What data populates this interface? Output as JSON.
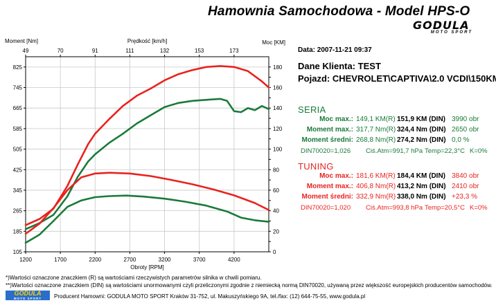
{
  "header": {
    "title": "Hamownia Samochodowa   -   Model HPS-O",
    "logo": {
      "word": "GODULA",
      "sub": "MOTO SPORT"
    }
  },
  "info": {
    "date": "Data: 2007-11-21  09:37",
    "client": "Dane Klienta: TEST",
    "vehicle": "Pojazd: CHEVROLET\\CAPTIVA\\2.0 VCDI\\150KM"
  },
  "seria": {
    "title": "SERIA",
    "rows": [
      {
        "label": "Moc max.:",
        "r": "149,1 KM(R)",
        "din": "151,9 KM (DIN)",
        "extra": "3990 obr"
      },
      {
        "label": "Moment max.:",
        "r": "317,7 Nm(R)",
        "din": "324,4 Nm (DIN)",
        "extra": "2650 obr"
      },
      {
        "label": "Moment średni:",
        "r": "268,8 Nm(R)",
        "din": "274,2 Nm (DIN)",
        "extra": "0,0 %"
      }
    ],
    "din_line": {
      "factor": "DIN70020=1,026",
      "atm": "Ciś.Atm=991,7 hPa",
      "temp": "Temp=22,3°C",
      "k": "K=0%"
    },
    "color": "#1a7a3a"
  },
  "tuning": {
    "title": "TUNING",
    "rows": [
      {
        "label": "Moc max.:",
        "r": "181,6 KM(R)",
        "din": "184,4 KM (DIN)",
        "extra": "3840 obr"
      },
      {
        "label": "Moment max.:",
        "r": "406,8 Nm(R)",
        "din": "413,2 Nm (DIN)",
        "extra": "2410 obr"
      },
      {
        "label": "Moment średni:",
        "r": "332,9 Nm(R)",
        "din": "338,0 Nm (DIN)",
        "extra": "+23,3 %"
      }
    ],
    "din_line": {
      "factor": "DIN70020=1,020",
      "atm": "Ciś.Atm=993,8 hPa",
      "temp": "Temp=20,5°C",
      "k": "K=0%"
    },
    "color": "#e8231f"
  },
  "footer": {
    "note1": "*)Wartości oznaczone znaczkiem (R) są wartościami rzeczywistych parametrów silnika w chwili pomiaru.",
    "note2": "**)Wartości oznaczone znaczkiem (DIN) są wartościami unormowanymi czyli przeliczonymi zgodnie z niemiecką normą DIN70020, używaną przez większość europejskich producentów samochodów.",
    "producer": "Producent Hamowni: GODULA MOTO SPORT Kraków 31-752, ul. Makuszyńskiego 9A, tel./fax: (12) 644-75-55, www.godula.pl",
    "logo_word": "GODULA",
    "logo_sub": "MOTO SPORT"
  },
  "chart_data": {
    "type": "line",
    "xlabel": "Obroty [RPM]",
    "xlabel_top": "Prędkość [km/h]",
    "ylabel_left": "Moment [Nm]",
    "ylabel_right": "Moc [KM]",
    "xlim": [
      1200,
      4700
    ],
    "ylim_left": [
      105,
      865
    ],
    "ylim_right": [
      0,
      190
    ],
    "x_ticks": [
      "1200",
      "1700",
      "2200",
      "2700",
      "3200",
      "3700",
      "4200"
    ],
    "x_top_ticks": [
      "49",
      "70",
      "91",
      "111",
      "132",
      "153",
      "173"
    ],
    "y_left_ticks": [
      "105",
      "185",
      "265",
      "345",
      "425",
      "505",
      "585",
      "665",
      "745",
      "825"
    ],
    "y_right_ticks": [
      "0",
      "10",
      "20",
      "30",
      "40",
      "50",
      "60",
      "70",
      "80",
      "90",
      "100",
      "110",
      "120",
      "130",
      "140",
      "150",
      "160",
      "170",
      "180"
    ],
    "grid": true,
    "series": [
      {
        "color": "#e8231f",
        "axis": "right",
        "x": [
          1200,
          1400,
          1600,
          1800,
          1950,
          2100,
          2200,
          2400,
          2600,
          2800,
          3000,
          3200,
          3400,
          3600,
          3800,
          4000,
          4200,
          4400,
          4600,
          4700
        ],
        "values": [
          26,
          32,
          42,
          64,
          85,
          105,
          115,
          129,
          142,
          152,
          159,
          167,
          173,
          177,
          180,
          181,
          180,
          176,
          166,
          160
        ]
      },
      {
        "color": "#1a7a3a",
        "axis": "right",
        "x": [
          1200,
          1400,
          1600,
          1800,
          1950,
          2100,
          2200,
          2400,
          2600,
          2800,
          3000,
          3200,
          3400,
          3600,
          3800,
          4000,
          4100,
          4200,
          4300,
          4400,
          4500,
          4600,
          4700
        ],
        "values": [
          22,
          28,
          36,
          54,
          73,
          88,
          95,
          106,
          115,
          125,
          133,
          141,
          145,
          147,
          148,
          149,
          147,
          137,
          136,
          140,
          138,
          142,
          139
        ]
      },
      {
        "color": "#e8231f",
        "axis": "left",
        "x": [
          1200,
          1400,
          1600,
          1800,
          2000,
          2200,
          2410,
          2700,
          3000,
          3300,
          3600,
          3900,
          4200,
          4500,
          4700
        ],
        "values": [
          175,
          215,
          275,
          345,
          395,
          410,
          413,
          410,
          400,
          385,
          368,
          348,
          325,
          295,
          268
        ]
      },
      {
        "color": "#1a7a3a",
        "axis": "left",
        "x": [
          1200,
          1400,
          1600,
          1800,
          2000,
          2200,
          2400,
          2650,
          2900,
          3200,
          3500,
          3800,
          4100,
          4300,
          4500,
          4700
        ],
        "values": [
          140,
          172,
          225,
          280,
          305,
          318,
          322,
          324,
          320,
          312,
          300,
          285,
          262,
          238,
          228,
          222
        ]
      }
    ]
  }
}
